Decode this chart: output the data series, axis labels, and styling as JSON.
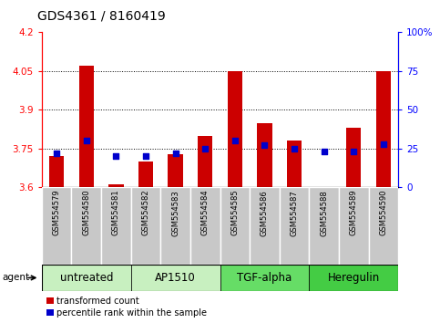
{
  "title": "GDS4361 / 8160419",
  "samples": [
    "GSM554579",
    "GSM554580",
    "GSM554581",
    "GSM554582",
    "GSM554583",
    "GSM554584",
    "GSM554585",
    "GSM554586",
    "GSM554587",
    "GSM554588",
    "GSM554589",
    "GSM554590"
  ],
  "red_values": [
    3.72,
    4.07,
    3.61,
    3.7,
    3.73,
    3.8,
    4.05,
    3.85,
    3.78,
    3.6,
    3.83,
    4.05
  ],
  "blue_values": [
    22,
    30,
    20,
    20,
    22,
    25,
    30,
    27,
    25,
    23,
    23,
    28
  ],
  "ylim_left": [
    3.6,
    4.2
  ],
  "ylim_right": [
    0,
    100
  ],
  "yticks_left": [
    3.6,
    3.75,
    3.9,
    4.05,
    4.2
  ],
  "yticks_right": [
    0,
    25,
    50,
    75,
    100
  ],
  "ytick_labels_left": [
    "3.6",
    "3.75",
    "3.9",
    "4.05",
    "4.2"
  ],
  "ytick_labels_right": [
    "0",
    "25",
    "50",
    "75",
    "100%"
  ],
  "hlines": [
    3.75,
    3.9,
    4.05
  ],
  "groups": [
    {
      "label": "untreated",
      "start": 0,
      "end": 3,
      "color": "#c8f0c0"
    },
    {
      "label": "AP1510",
      "start": 3,
      "end": 6,
      "color": "#c8f0c0"
    },
    {
      "label": "TGF-alpha",
      "start": 6,
      "end": 9,
      "color": "#66dd66"
    },
    {
      "label": "Heregulin",
      "start": 9,
      "end": 12,
      "color": "#44cc44"
    }
  ],
  "bar_color": "#CC0000",
  "dot_color": "#0000CC",
  "bar_width": 0.5,
  "dot_size": 18,
  "legend_red": "transformed count",
  "legend_blue": "percentile rank within the sample",
  "title_fontsize": 10,
  "tick_fontsize": 7.5,
  "sample_fontsize": 6,
  "group_fontsize": 8.5,
  "ybaseline": 3.6,
  "sample_box_color": "#c8c8c8",
  "sample_box_edge_color": "#ffffff"
}
